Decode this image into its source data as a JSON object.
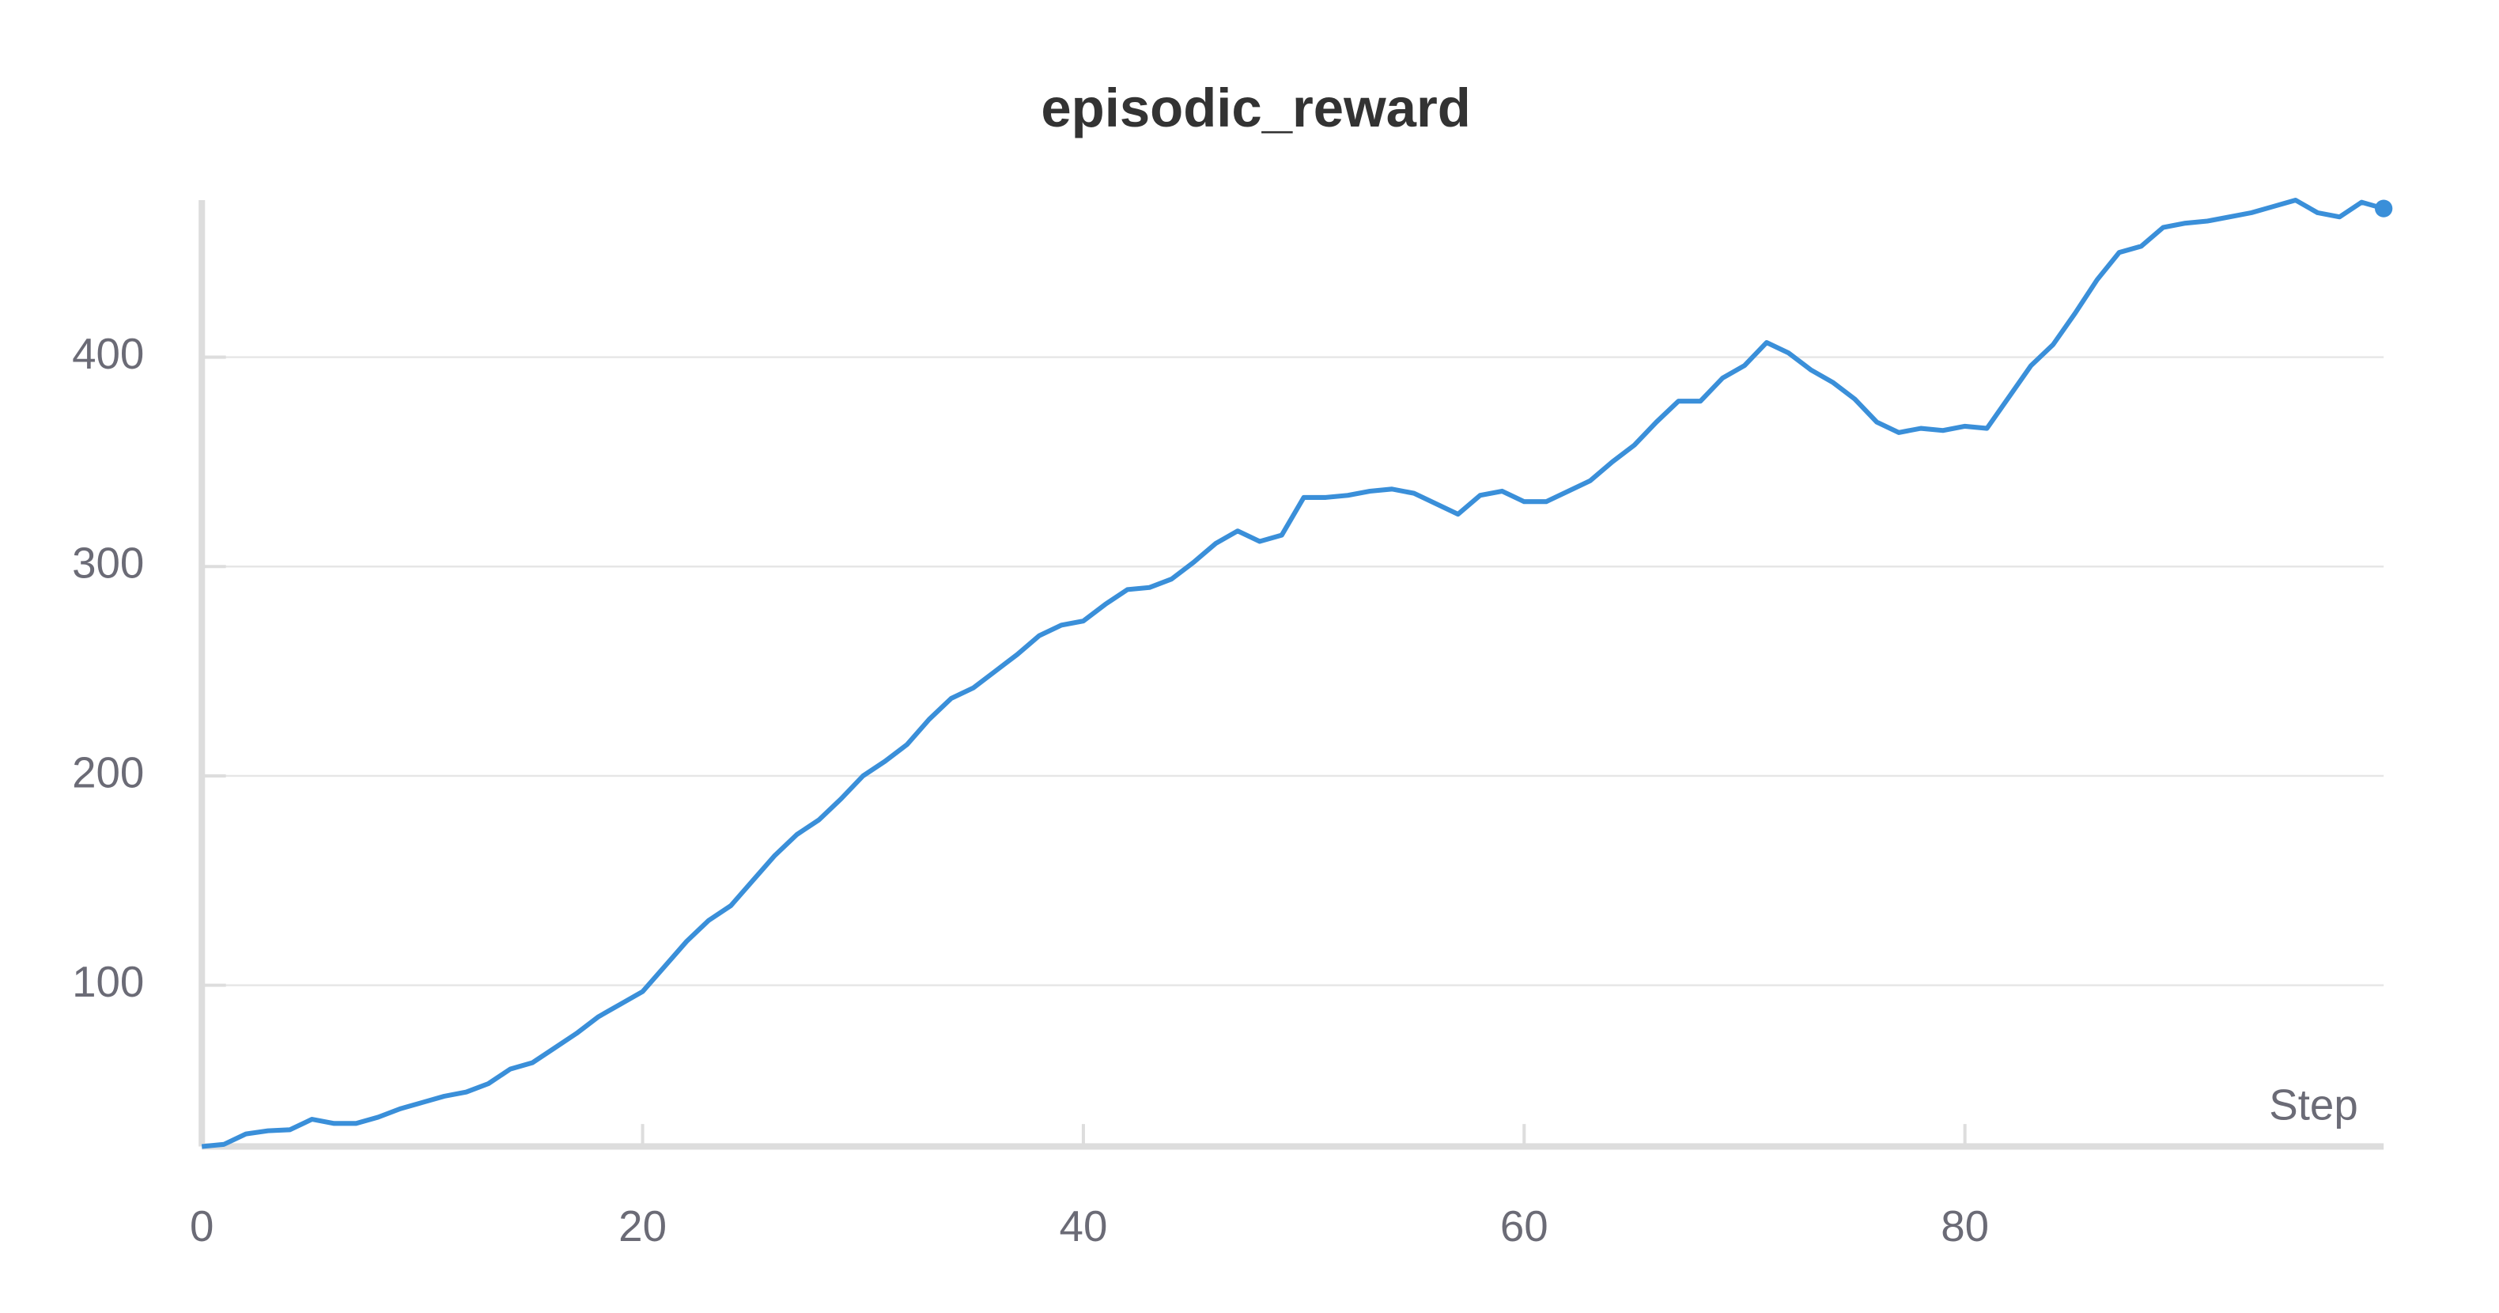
{
  "chart_data": {
    "type": "line",
    "title": "episodic_reward",
    "x_label": "Step",
    "x": [
      0,
      1,
      2,
      3,
      4,
      5,
      6,
      7,
      8,
      9,
      10,
      11,
      12,
      13,
      14,
      15,
      16,
      17,
      18,
      19,
      20,
      21,
      22,
      23,
      24,
      25,
      26,
      27,
      28,
      29,
      30,
      31,
      32,
      33,
      34,
      35,
      36,
      37,
      38,
      39,
      40,
      41,
      42,
      43,
      44,
      45,
      46,
      47,
      48,
      49,
      50,
      51,
      52,
      53,
      54,
      55,
      56,
      57,
      58,
      59,
      60,
      61,
      62,
      63,
      64,
      65,
      66,
      67,
      68,
      69,
      70,
      71,
      72,
      73,
      74,
      75,
      76,
      77,
      78,
      79,
      80,
      81,
      82,
      83,
      84,
      85,
      86,
      87,
      88,
      89,
      90,
      91,
      92,
      93,
      94,
      95,
      96,
      97,
      98,
      99
    ],
    "series": [
      {
        "name": "episodic_reward",
        "color": "#3a8fd9",
        "values": [
          23,
          24,
          29,
          30.5,
          31,
          36,
          34,
          34,
          37,
          41,
          44,
          47,
          49,
          53,
          60,
          63,
          70,
          77,
          85,
          91,
          97,
          109,
          121,
          131,
          138,
          150,
          162,
          172,
          179,
          189,
          200,
          207,
          215,
          227,
          237,
          242,
          250,
          258,
          267,
          272,
          274,
          282,
          289,
          290,
          294,
          302,
          311,
          317,
          312,
          315,
          333,
          333,
          334,
          336,
          337,
          335,
          330,
          325,
          334,
          336,
          331,
          331,
          336,
          341,
          350,
          358,
          369,
          379,
          379,
          390,
          396,
          407,
          402,
          394,
          388,
          380,
          369,
          364,
          366,
          365,
          367,
          366,
          381,
          396,
          406,
          421,
          437,
          450,
          453,
          462,
          464,
          465,
          467,
          469,
          472,
          475,
          469,
          467,
          474,
          471
        ]
      }
    ],
    "xlim": [
      0,
      99
    ],
    "xticks": [
      0,
      20,
      40,
      60,
      80
    ],
    "ylim": [
      23,
      475
    ],
    "yticks": [
      100,
      200,
      300,
      400
    ],
    "grid": true
  }
}
